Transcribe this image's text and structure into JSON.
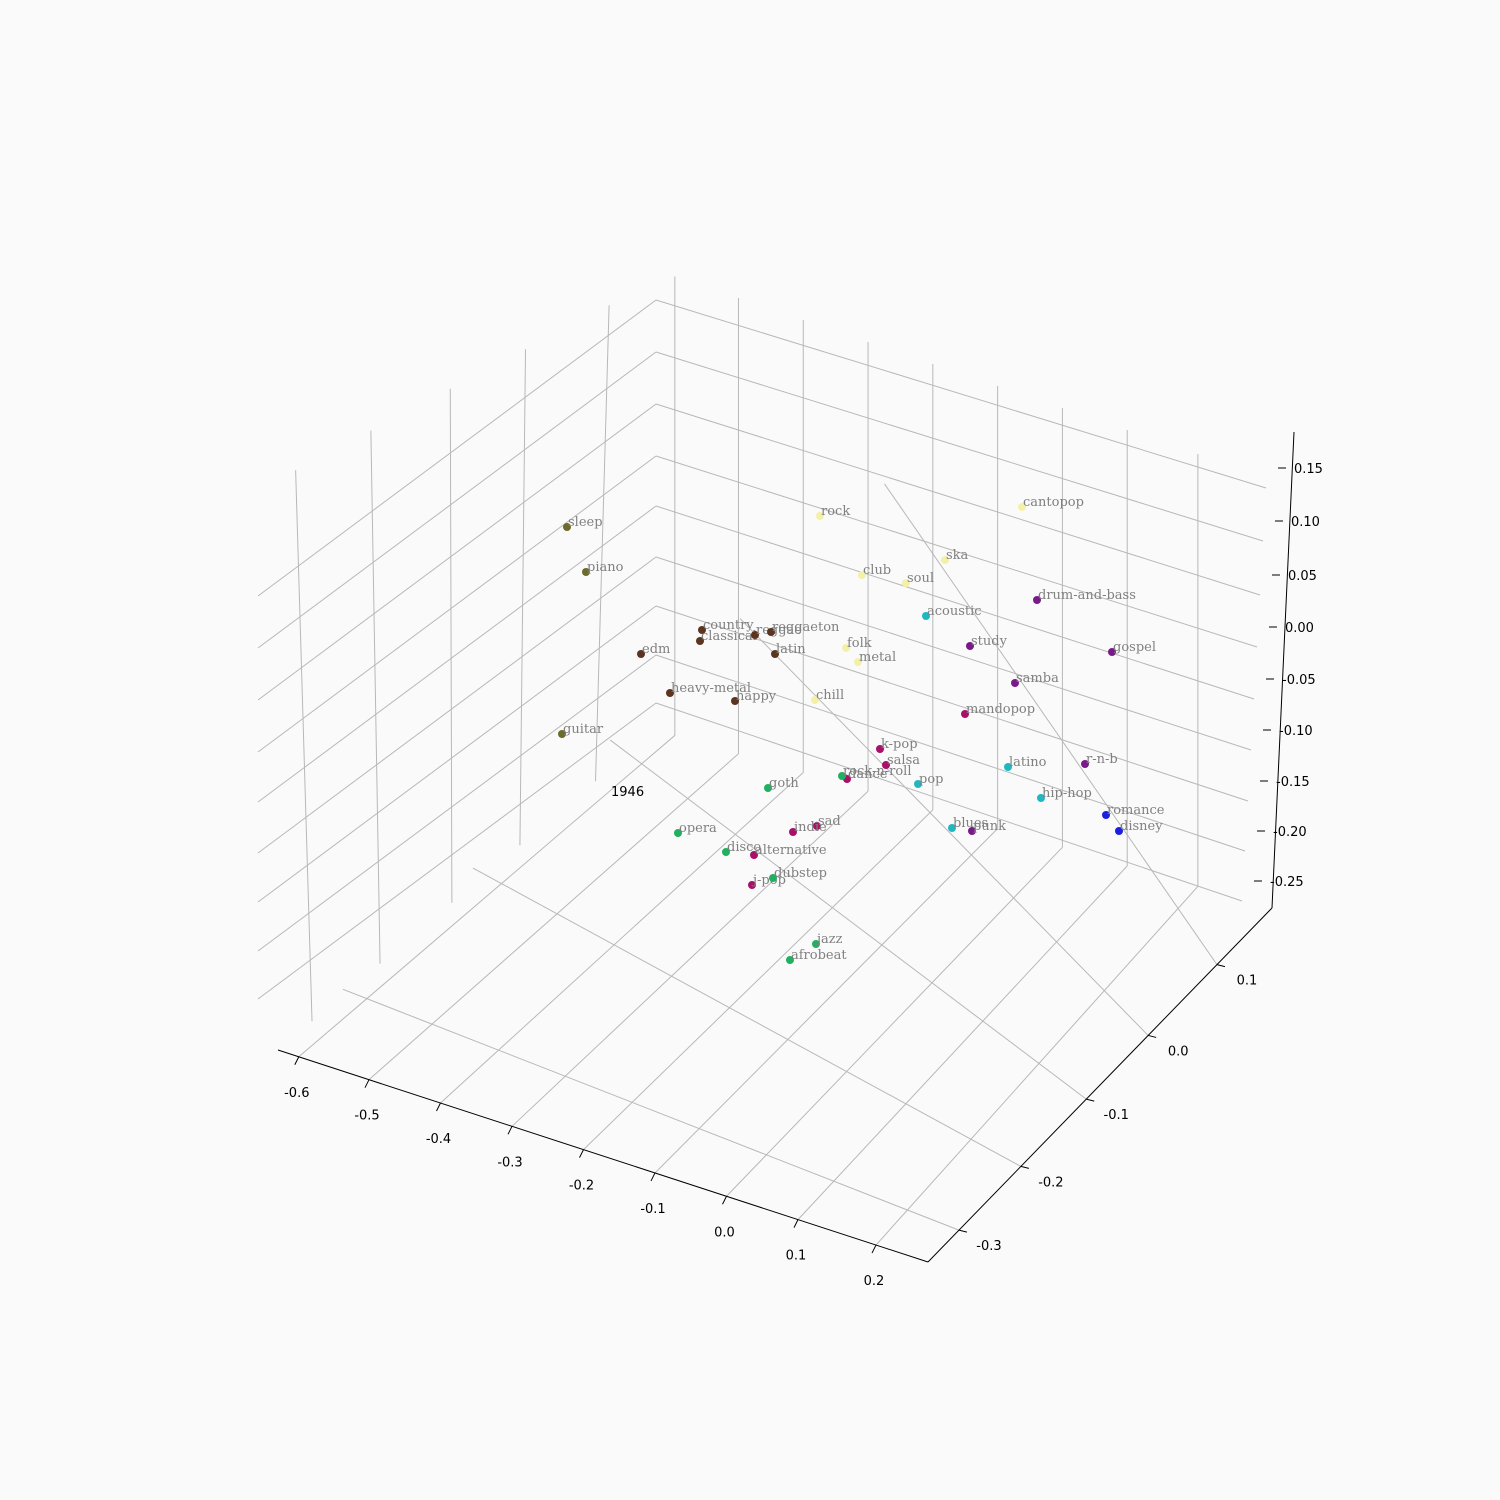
{
  "chart_data": {
    "type": "scatter",
    "projection": "3d",
    "annotation": "1946",
    "xlim": [
      -0.65,
      0.22
    ],
    "ylim": [
      -0.38,
      0.13
    ],
    "zlim": [
      -0.28,
      0.18
    ],
    "x_ticks": [
      "-0.6",
      "-0.5",
      "-0.4",
      "-0.3",
      "-0.2",
      "-0.1",
      "0.0",
      "0.1",
      "0.2"
    ],
    "y_ticks": [
      "-0.3",
      "-0.2",
      "-0.1",
      "0.0",
      "0.1"
    ],
    "z_ticks": [
      "-0.25",
      "-0.20",
      "-0.15",
      "-0.10",
      "-0.05",
      "0.00",
      "0.05",
      "0.10",
      "0.15"
    ],
    "grid": true,
    "colors": {
      "olive": "#6b6b2a",
      "brown": "#5c3520",
      "pale_yellow": "#f5f0a8",
      "cyan": "#20b8c0",
      "purple": "#7a1a8a",
      "magenta": "#a8106a",
      "green": "#20b060",
      "blue": "#1a20e0"
    },
    "points": [
      {
        "label": "sleep",
        "color": "olive"
      },
      {
        "label": "piano",
        "color": "olive"
      },
      {
        "label": "guitar",
        "color": "olive"
      },
      {
        "label": "edm",
        "color": "brown"
      },
      {
        "label": "country",
        "color": "brown"
      },
      {
        "label": "classical",
        "color": "brown"
      },
      {
        "label": "reggae",
        "color": "brown"
      },
      {
        "label": "reggaeton",
        "color": "brown"
      },
      {
        "label": "latin",
        "color": "brown"
      },
      {
        "label": "heavy-metal",
        "color": "brown"
      },
      {
        "label": "happy",
        "color": "brown"
      },
      {
        "label": "rock",
        "color": "pale_yellow"
      },
      {
        "label": "cantopop",
        "color": "pale_yellow"
      },
      {
        "label": "ska",
        "color": "pale_yellow"
      },
      {
        "label": "club",
        "color": "pale_yellow"
      },
      {
        "label": "soul",
        "color": "pale_yellow"
      },
      {
        "label": "folk",
        "color": "pale_yellow"
      },
      {
        "label": "metal",
        "color": "pale_yellow"
      },
      {
        "label": "chill",
        "color": "pale_yellow"
      },
      {
        "label": "acoustic",
        "color": "cyan"
      },
      {
        "label": "latino",
        "color": "cyan"
      },
      {
        "label": "pop",
        "color": "cyan"
      },
      {
        "label": "hip-hop",
        "color": "cyan"
      },
      {
        "label": "blues",
        "color": "cyan"
      },
      {
        "label": "drum-and-bass",
        "color": "purple"
      },
      {
        "label": "study",
        "color": "purple"
      },
      {
        "label": "gospel",
        "color": "purple"
      },
      {
        "label": "samba",
        "color": "purple"
      },
      {
        "label": "r-n-b",
        "color": "purple"
      },
      {
        "label": "punk",
        "color": "purple"
      },
      {
        "label": "mandopop",
        "color": "magenta"
      },
      {
        "label": "k-pop",
        "color": "magenta"
      },
      {
        "label": "salsa",
        "color": "magenta"
      },
      {
        "label": "dance",
        "color": "magenta"
      },
      {
        "label": "sad",
        "color": "magenta"
      },
      {
        "label": "indie",
        "color": "magenta"
      },
      {
        "label": "alternative",
        "color": "magenta"
      },
      {
        "label": "j-pop",
        "color": "magenta"
      },
      {
        "label": "rock-n-roll",
        "color": "green"
      },
      {
        "label": "goth",
        "color": "green"
      },
      {
        "label": "opera",
        "color": "green"
      },
      {
        "label": "disco",
        "color": "green"
      },
      {
        "label": "dubstep",
        "color": "green"
      },
      {
        "label": "jazz",
        "color": "green"
      },
      {
        "label": "afrobeat",
        "color": "green"
      },
      {
        "label": "romance",
        "color": "blue"
      },
      {
        "label": "disney",
        "color": "blue"
      }
    ]
  }
}
